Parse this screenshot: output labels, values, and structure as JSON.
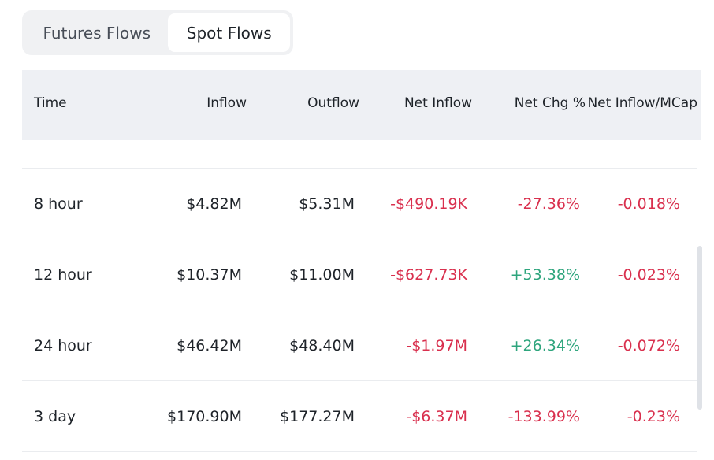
{
  "tabs": {
    "futures_label": "Futures Flows",
    "spot_label": "Spot Flows",
    "active": "Spot Flows"
  },
  "table": {
    "headers": {
      "time": "Time",
      "inflow": "Inflow",
      "outflow": "Outflow",
      "net_inflow": "Net Inflow",
      "net_chg": "Net Chg %",
      "net_inflow_mcap": "Net Inflow/MCap"
    },
    "rows": [
      {
        "time": "8 hour",
        "inflow": "$4.82M",
        "outflow": "$5.31M",
        "net_inflow": "-$490.19K",
        "net_chg": "-27.36%",
        "net_inflow_mcap": "-0.018%"
      },
      {
        "time": "12 hour",
        "inflow": "$10.37M",
        "outflow": "$11.00M",
        "net_inflow": "-$627.73K",
        "net_chg": "+53.38%",
        "net_inflow_mcap": "-0.023%"
      },
      {
        "time": "24 hour",
        "inflow": "$46.42M",
        "outflow": "$48.40M",
        "net_inflow": "-$1.97M",
        "net_chg": "+26.34%",
        "net_inflow_mcap": "-0.072%"
      },
      {
        "time": "3 day",
        "inflow": "$170.90M",
        "outflow": "$177.27M",
        "net_inflow": "-$6.37M",
        "net_chg": "-133.99%",
        "net_inflow_mcap": "-0.23%"
      }
    ]
  },
  "colors": {
    "negative": "#d9304e",
    "positive": "#2ea57d",
    "header_bg": "#eef0f4"
  }
}
